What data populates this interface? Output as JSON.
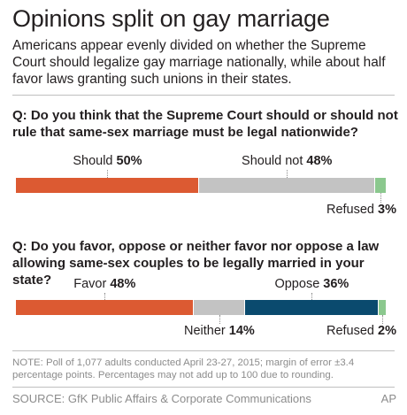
{
  "title": "Opinions split on gay marriage",
  "subtitle": "Americans appear evenly divided on whether the Supreme Court should legalize gay marriage nationally, while about half favor laws granting such unions in their states.",
  "note": "NOTE: Poll of 1,077 adults conducted April 23-27, 2015; margin of error ±3.4 percentage points. Percentages may not add up to 100 due to rounding.",
  "source": "SOURCE: GfK Public Affairs & Corporate Communications",
  "credit": "AP",
  "chart_data": [
    {
      "type": "bar",
      "orientation": "horizontal-stacked",
      "title": "Q: Do you think that the Supreme Court should or should not rule that same-sex marriage must be legal nationwide?",
      "xlim": [
        0,
        100
      ],
      "series": [
        {
          "name": "Should",
          "value": 50,
          "display": "50%",
          "color": "#dc5a32"
        },
        {
          "name": "Should not",
          "value": 48,
          "display": "48%",
          "color": "#c3c3c3"
        },
        {
          "name": "Refused",
          "value": 3,
          "display": "3%",
          "color": "#8bc88e"
        }
      ]
    },
    {
      "type": "bar",
      "orientation": "horizontal-stacked",
      "title": "Q: Do you favor, oppose or neither favor nor oppose a law allowing same-sex couples to be legally married in your state?",
      "xlim": [
        0,
        100
      ],
      "series": [
        {
          "name": "Favor",
          "value": 48,
          "display": "48%",
          "color": "#dc5a32"
        },
        {
          "name": "Neither",
          "value": 14,
          "display": "14%",
          "color": "#c3c3c3"
        },
        {
          "name": "Oppose",
          "value": 36,
          "display": "36%",
          "color": "#0a4a6e"
        },
        {
          "name": "Refused",
          "value": 2,
          "display": "2%",
          "color": "#8bc88e"
        }
      ]
    }
  ]
}
